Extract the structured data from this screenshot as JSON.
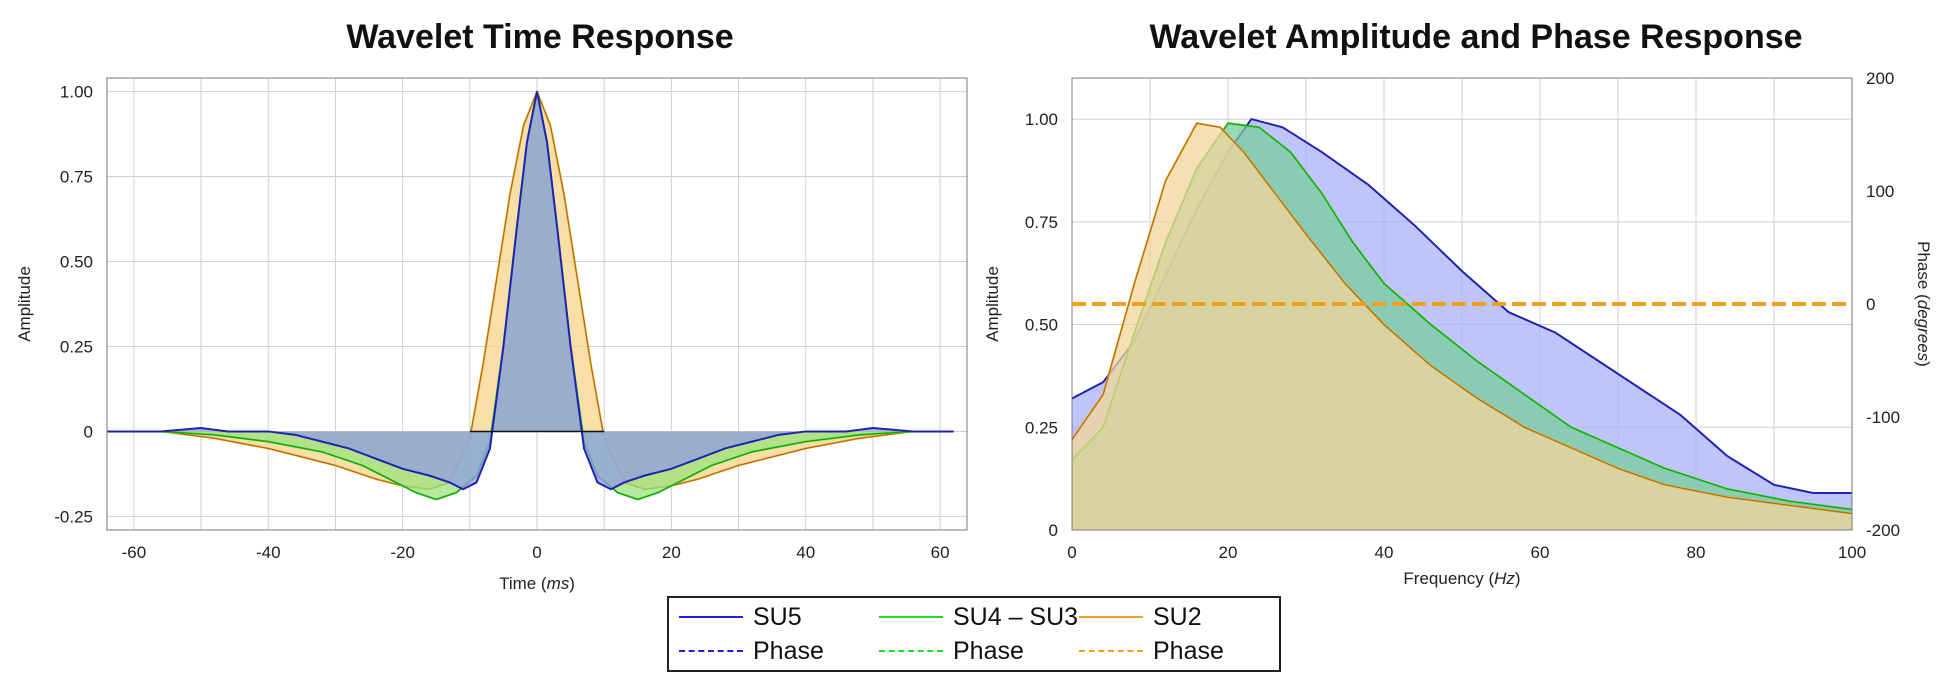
{
  "chart_data": [
    {
      "type": "area",
      "title": "Wavelet Time Response",
      "xlabel": "Time",
      "xlabel_unit": "ms",
      "ylabel": "Amplitude",
      "xlim": [
        -64,
        64
      ],
      "ylim": [
        -0.29,
        1.04
      ],
      "x_ticks": [
        -60,
        -40,
        -20,
        0,
        20,
        40,
        60
      ],
      "y_ticks": [
        -0.25,
        0,
        0.25,
        0.5,
        0.75,
        1.0
      ],
      "y_tick_labels": [
        "-0.25",
        "0",
        "0.25",
        "0.50",
        "0.75",
        "1.00"
      ],
      "grid": true,
      "series": [
        {
          "name": "SU2",
          "color": "#f0a020",
          "fill": "#f5d48a",
          "points": [
            [
              -64,
              0
            ],
            [
              -56,
              0
            ],
            [
              -48,
              -0.02
            ],
            [
              -40,
              -0.05
            ],
            [
              -30,
              -0.1
            ],
            [
              -24,
              -0.14
            ],
            [
              -20,
              -0.16
            ],
            [
              -16,
              -0.17
            ],
            [
              -13,
              -0.15
            ],
            [
              -10,
              -0.02
            ],
            [
              -8,
              0.2
            ],
            [
              -6,
              0.45
            ],
            [
              -4,
              0.7
            ],
            [
              -2,
              0.9
            ],
            [
              0,
              1.0
            ],
            [
              2,
              0.9
            ],
            [
              4,
              0.7
            ],
            [
              6,
              0.45
            ],
            [
              8,
              0.2
            ],
            [
              10,
              -0.02
            ],
            [
              13,
              -0.15
            ],
            [
              16,
              -0.17
            ],
            [
              20,
              -0.16
            ],
            [
              24,
              -0.14
            ],
            [
              30,
              -0.1
            ],
            [
              40,
              -0.05
            ],
            [
              48,
              -0.02
            ],
            [
              56,
              0
            ],
            [
              62,
              0
            ]
          ]
        },
        {
          "name": "SU4 – SU3",
          "color": "#22dd22",
          "fill": "#9ce27c",
          "points": [
            [
              -64,
              0
            ],
            [
              -56,
              0
            ],
            [
              -48,
              -0.01
            ],
            [
              -40,
              -0.03
            ],
            [
              -32,
              -0.06
            ],
            [
              -26,
              -0.1
            ],
            [
              -22,
              -0.14
            ],
            [
              -18,
              -0.18
            ],
            [
              -15,
              -0.2
            ],
            [
              -12,
              -0.18
            ],
            [
              -9,
              -0.13
            ],
            [
              -7,
              -0.03
            ],
            [
              -5,
              0.25
            ],
            [
              -3,
              0.6
            ],
            [
              -1.5,
              0.85
            ],
            [
              0,
              1.0
            ],
            [
              1.5,
              0.85
            ],
            [
              3,
              0.6
            ],
            [
              5,
              0.25
            ],
            [
              7,
              -0.03
            ],
            [
              9,
              -0.13
            ],
            [
              12,
              -0.18
            ],
            [
              15,
              -0.2
            ],
            [
              18,
              -0.18
            ],
            [
              22,
              -0.14
            ],
            [
              26,
              -0.1
            ],
            [
              32,
              -0.06
            ],
            [
              40,
              -0.03
            ],
            [
              48,
              -0.01
            ],
            [
              56,
              0
            ],
            [
              62,
              0
            ]
          ]
        },
        {
          "name": "SU5",
          "color": "#1a22dd",
          "fill": "#8f9ce0",
          "points": [
            [
              -64,
              0
            ],
            [
              -56,
              0
            ],
            [
              -50,
              0.01
            ],
            [
              -46,
              0.0
            ],
            [
              -40,
              0.0
            ],
            [
              -36,
              -0.01
            ],
            [
              -32,
              -0.03
            ],
            [
              -28,
              -0.05
            ],
            [
              -24,
              -0.08
            ],
            [
              -20,
              -0.11
            ],
            [
              -16,
              -0.13
            ],
            [
              -13,
              -0.15
            ],
            [
              -11,
              -0.17
            ],
            [
              -9,
              -0.15
            ],
            [
              -7,
              -0.05
            ],
            [
              -5,
              0.25
            ],
            [
              -3,
              0.6
            ],
            [
              -1.5,
              0.85
            ],
            [
              0,
              1.0
            ],
            [
              1.5,
              0.85
            ],
            [
              3,
              0.6
            ],
            [
              5,
              0.25
            ],
            [
              7,
              -0.05
            ],
            [
              9,
              -0.15
            ],
            [
              11,
              -0.17
            ],
            [
              13,
              -0.15
            ],
            [
              16,
              -0.13
            ],
            [
              20,
              -0.11
            ],
            [
              24,
              -0.08
            ],
            [
              28,
              -0.05
            ],
            [
              32,
              -0.03
            ],
            [
              36,
              -0.01
            ],
            [
              40,
              0.0
            ],
            [
              46,
              0.0
            ],
            [
              50,
              0.01
            ],
            [
              56,
              0
            ],
            [
              62,
              0
            ]
          ]
        }
      ]
    },
    {
      "type": "area",
      "title": "Wavelet Amplitude and Phase Response",
      "xlabel": "Frequency",
      "xlabel_unit": "Hz",
      "ylabel": "Amplitude",
      "y2label": "Phase",
      "y2label_unit": "degrees",
      "xlim": [
        0,
        100
      ],
      "ylim": [
        0,
        1.1
      ],
      "y2lim": [
        -200,
        200
      ],
      "x_ticks": [
        0,
        20,
        40,
        60,
        80,
        100
      ],
      "y_ticks": [
        0,
        0.25,
        0.5,
        0.75,
        1.0
      ],
      "y_tick_labels": [
        "0",
        "0.25",
        "0.50",
        "0.75",
        "1.00"
      ],
      "y2_ticks": [
        200,
        100,
        0,
        -100,
        -200
      ],
      "grid": true,
      "series": [
        {
          "name": "SU5",
          "color": "#1a22dd",
          "fill": "#aab2f5",
          "points": [
            [
              0,
              0.32
            ],
            [
              4,
              0.36
            ],
            [
              8,
              0.46
            ],
            [
              12,
              0.62
            ],
            [
              16,
              0.78
            ],
            [
              20,
              0.92
            ],
            [
              23,
              1.0
            ],
            [
              27,
              0.98
            ],
            [
              32,
              0.92
            ],
            [
              38,
              0.84
            ],
            [
              44,
              0.74
            ],
            [
              50,
              0.63
            ],
            [
              56,
              0.53
            ],
            [
              62,
              0.48
            ],
            [
              70,
              0.38
            ],
            [
              78,
              0.28
            ],
            [
              84,
              0.18
            ],
            [
              90,
              0.11
            ],
            [
              95,
              0.09
            ],
            [
              100,
              0.09
            ]
          ]
        },
        {
          "name": "SU4 – SU3",
          "color": "#22dd22",
          "fill": "#78cc9c",
          "points": [
            [
              0,
              0.17
            ],
            [
              4,
              0.25
            ],
            [
              8,
              0.48
            ],
            [
              12,
              0.7
            ],
            [
              16,
              0.88
            ],
            [
              20,
              0.99
            ],
            [
              24,
              0.98
            ],
            [
              28,
              0.92
            ],
            [
              32,
              0.82
            ],
            [
              36,
              0.7
            ],
            [
              40,
              0.6
            ],
            [
              46,
              0.5
            ],
            [
              52,
              0.41
            ],
            [
              58,
              0.33
            ],
            [
              64,
              0.25
            ],
            [
              70,
              0.2
            ],
            [
              76,
              0.15
            ],
            [
              84,
              0.1
            ],
            [
              92,
              0.07
            ],
            [
              100,
              0.05
            ]
          ]
        },
        {
          "name": "SU2",
          "color": "#f0a020",
          "fill": "#f2d69a",
          "points": [
            [
              0,
              0.22
            ],
            [
              4,
              0.33
            ],
            [
              8,
              0.6
            ],
            [
              12,
              0.85
            ],
            [
              16,
              0.99
            ],
            [
              19,
              0.98
            ],
            [
              22,
              0.92
            ],
            [
              26,
              0.82
            ],
            [
              30,
              0.72
            ],
            [
              35,
              0.6
            ],
            [
              40,
              0.5
            ],
            [
              46,
              0.4
            ],
            [
              52,
              0.32
            ],
            [
              58,
              0.25
            ],
            [
              64,
              0.2
            ],
            [
              70,
              0.15
            ],
            [
              76,
              0.11
            ],
            [
              84,
              0.08
            ],
            [
              92,
              0.06
            ],
            [
              100,
              0.04
            ]
          ]
        }
      ],
      "phase": {
        "name": "Phase",
        "value_degrees": 0,
        "color": "#f0a020"
      }
    }
  ],
  "legend": {
    "items": [
      {
        "label": "SU5",
        "color": "#1a22dd",
        "style": "solid"
      },
      {
        "label": "SU4 – SU3",
        "color": "#22dd22",
        "style": "solid"
      },
      {
        "label": "SU2",
        "color": "#f0a020",
        "style": "solid"
      },
      {
        "label": "Phase",
        "color": "#1a22dd",
        "style": "dash"
      },
      {
        "label": "Phase",
        "color": "#22dd22",
        "style": "dash"
      },
      {
        "label": "Phase",
        "color": "#f0a020",
        "style": "dash"
      }
    ]
  }
}
